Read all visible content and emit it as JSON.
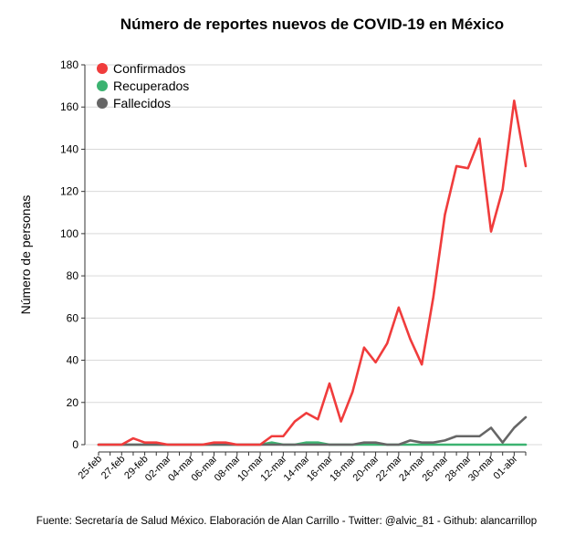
{
  "chart_data": {
    "type": "line",
    "title": "Número de reportes nuevos de COVID-19 en México",
    "ylabel": "Número de personas",
    "xlabel": "",
    "caption": "Fuente: Secretaría de Salud México. Elaboración de Alan Carrillo - Twitter: @alvic_81 - Github: alancarrillop",
    "ylim": [
      0,
      180
    ],
    "yticks": [
      0,
      20,
      40,
      60,
      80,
      100,
      120,
      140,
      160,
      180
    ],
    "grid": true,
    "legend_position": "top-left",
    "x": [
      "25-feb",
      "26-feb",
      "27-feb",
      "28-feb",
      "29-feb",
      "01-mar",
      "02-mar",
      "03-mar",
      "04-mar",
      "05-mar",
      "06-mar",
      "07-mar",
      "08-mar",
      "09-mar",
      "10-mar",
      "11-mar",
      "12-mar",
      "13-mar",
      "14-mar",
      "15-mar",
      "16-mar",
      "17-mar",
      "18-mar",
      "19-mar",
      "20-mar",
      "21-mar",
      "22-mar",
      "23-mar",
      "24-mar",
      "25-mar",
      "26-mar",
      "27-mar",
      "28-mar",
      "29-mar",
      "30-mar",
      "31-mar",
      "01-abr",
      "02-abr"
    ],
    "x_tick_labels": [
      "25-feb",
      "27-feb",
      "29-feb",
      "02-mar",
      "04-mar",
      "06-mar",
      "08-mar",
      "10-mar",
      "12-mar",
      "14-mar",
      "16-mar",
      "18-mar",
      "20-mar",
      "22-mar",
      "24-mar",
      "26-mar",
      "28-mar",
      "30-mar",
      "01-abr"
    ],
    "series": [
      {
        "name": "Confirmados",
        "color": "#f03c3c",
        "values": [
          0,
          0,
          0,
          3,
          1,
          1,
          0,
          0,
          0,
          0,
          1,
          1,
          0,
          0,
          0,
          4,
          4,
          11,
          15,
          12,
          29,
          11,
          25,
          46,
          39,
          48,
          65,
          50,
          38,
          70,
          109,
          132,
          131,
          145,
          101,
          121,
          163,
          132
        ]
      },
      {
        "name": "Recuperados",
        "color": "#3cb371",
        "values": [
          0,
          0,
          0,
          0,
          0,
          0,
          0,
          0,
          0,
          0,
          0,
          0,
          0,
          0,
          0,
          1,
          0,
          0,
          1,
          1,
          0,
          0,
          0,
          0,
          0,
          0,
          0,
          0,
          0,
          0,
          0,
          0,
          0,
          0,
          0,
          0,
          0,
          0
        ]
      },
      {
        "name": "Fallecidos",
        "color": "#666666",
        "values": [
          0,
          0,
          0,
          0,
          0,
          0,
          0,
          0,
          0,
          0,
          0,
          0,
          0,
          0,
          0,
          0,
          0,
          0,
          0,
          0,
          0,
          0,
          0,
          1,
          1,
          0,
          0,
          2,
          1,
          1,
          2,
          4,
          4,
          4,
          8,
          1,
          8,
          13
        ]
      }
    ]
  }
}
